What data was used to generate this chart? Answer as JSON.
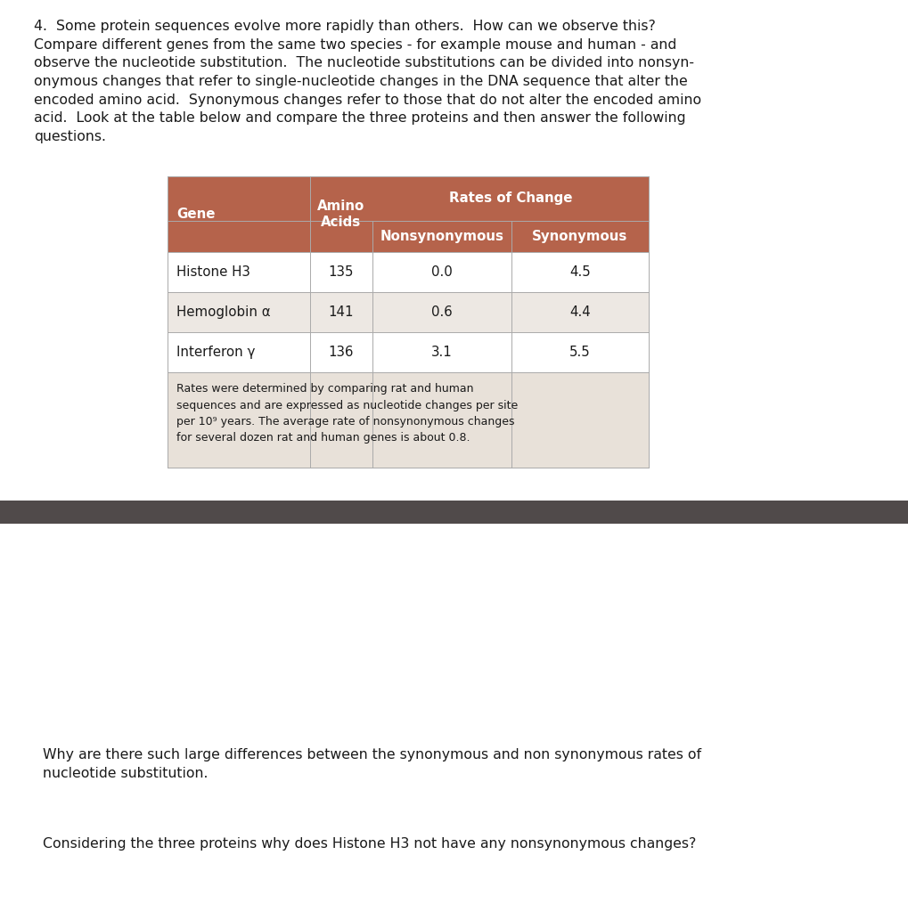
{
  "bg_color": "#ffffff",
  "separator_bar_color": "#504a4a",
  "paragraph_text": "4.  Some protein sequences evolve more rapidly than others.  How can we observe this?\nCompare different genes from the same two species - for example mouse and human - and\nobserve the nucleotide substitution.  The nucleotide substitutions can be divided into nonsyn-\nonymous changes that refer to single-nucleotide changes in the DNA sequence that alter the\nencoded amino acid.  Synonymous changes refer to those that do not alter the encoded amino\nacid.  Look at the table below and compare the three proteins and then answer the following\nquestions.",
  "question1": "Why are there such large differences between the synonymous and non synonymous rates of\nnucleotide substitution.",
  "question2": "Considering the three proteins why does Histone H3 not have any nonsynonymous changes?",
  "table": {
    "header_bg": "#b5634b",
    "footnote_bg": "#e8e1d9",
    "row_bg_1": "#ffffff",
    "row_bg_2": "#ede8e3",
    "row_bg_3": "#ffffff",
    "header_text_color": "#ffffff",
    "body_text_color": "#1a1a1a",
    "col1_header": "Gene",
    "col2_header": "Amino\nAcids",
    "col3_header": "Rates of Change",
    "col3a_subheader": "Nonsynonymous",
    "col3b_subheader": "Synonymous",
    "rows": [
      {
        "gene": "Histone H3",
        "amino_acids": "135",
        "nonsyn": "0.0",
        "syn": "4.5"
      },
      {
        "gene": "Hemoglobin α",
        "amino_acids": "141",
        "nonsyn": "0.6",
        "syn": "4.4"
      },
      {
        "gene": "Interferon γ",
        "amino_acids": "136",
        "nonsyn": "3.1",
        "syn": "5.5"
      }
    ],
    "footnote": "Rates were determined by comparing rat and human\nsequences and are expressed as nucleotide changes per site\nper 10⁹ years. The average rate of nonsynonymous changes\nfor several dozen rat and human genes is about 0.8."
  }
}
